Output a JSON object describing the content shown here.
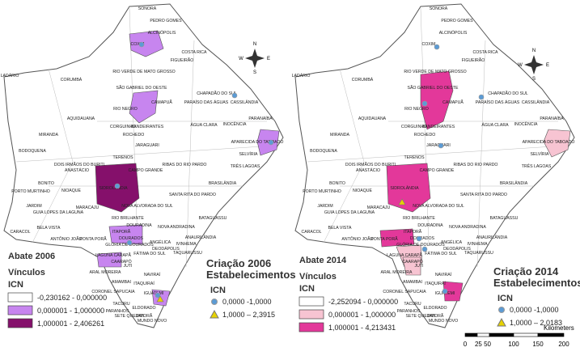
{
  "municipalities": [
    "SONORA",
    "PEDRO GOMES",
    "ALCINÓPOLIS",
    "COXIM",
    "COSTA RICA",
    "FIGUEIRÃO",
    "CORUMBÁ",
    "RIO VERDE DE MATO GROSSO",
    "LADÁRIO",
    "CHAPADÃO DO SUL",
    "SÃO GABRIEL DO OESTE",
    "CAMAPUÃ",
    "CASSILÂNDIA",
    "PARAÍSO DAS ÁGUAS",
    "RIO NEGRO",
    "PARANAÍBA",
    "INOCÊNCIA",
    "BANDEIRANTES",
    "CORGUINHO",
    "ÁGUA CLARA",
    "ROCHEDO",
    "APARECIDA DO TABOADO",
    "AQUIDAUANA",
    "JARAGUARI",
    "SELVÍRIA",
    "MIRANDA",
    "TRÊS LAGOAS",
    "TERENOS",
    "RIBAS DO RIO PARDO",
    "BODOQUENA",
    "DOIS IRMÃOS DO BURITI",
    "ANASTÁCIO",
    "CAMPO GRANDE",
    "PORTO MURTINHO",
    "BONITO",
    "SIDROLÂNDIA",
    "SANTA RITA DO PARDO",
    "BRASILÂNDIA",
    "NIOAQUE",
    "NOVA ALVORADA DO SUL",
    "JARDIM",
    "GUIA LOPES DA LAGUNA",
    "MARACAJU",
    "RIO BRILHANTE",
    "NOVA ANDRADINA",
    "BATAGUASSU",
    "CARACOL",
    "BELA VISTA",
    "ANTÔNIO JOÃO",
    "PONTA PORÃ",
    "DOURADINA",
    "ITAPORÃ",
    "DOURADOS",
    "ANAURILÂNDIA",
    "ANGÉLICA",
    "IVINHEMA",
    "DEODÁPOLIS",
    "GLÓRIA DE DOURADOS",
    "TAQUARUSSU",
    "LAGUNA CARAPÃ",
    "CAARAPÓ",
    "FÁTIMA DO SUL",
    "JUTI",
    "NAVIRAÍ",
    "ARAL MOREIRA",
    "AMAMBAI",
    "IGUATEMI",
    "CORONEL SAPUCAIA",
    "TACURU",
    "ITAQUIRAÍ",
    "PARANHOS",
    "SETE QUEDAS",
    "ELDORADO",
    "JAPORÃ",
    "MUNDO NOVO"
  ],
  "maps": [
    {
      "title": "Abate 2006",
      "legend_title": "Vínculos",
      "legend_subtitle": "ICN",
      "legend_items": [
        "-0,230162 - 0,000000",
        "0,000001 - 1,000000",
        "1,000001 - 2,406261"
      ],
      "points_title": [
        "Criação 2006",
        "Estabelecimentos"
      ],
      "points_subtitle": "ICN",
      "points_items": [
        "0,0000 -1,0000",
        "1,0000 – 2,3915"
      ]
    },
    {
      "title": "Abate 2014",
      "legend_title": "Vínculos",
      "legend_subtitle": "ICN",
      "legend_items": [
        "-2,252094 - 0,000000",
        "0,000001 - 1,000000",
        "1,000001 - 4,213431"
      ],
      "points_title": [
        "Criação 2014",
        "Estabelecimentos"
      ],
      "points_subtitle": "ICN",
      "points_items": [
        "0,0000 -1,0000",
        "1,0000 – 2,0183"
      ]
    }
  ],
  "compass": {
    "n": "N",
    "s": "S",
    "e": "E",
    "w": "W"
  },
  "scale": {
    "unit": "Kilometers",
    "ticks": [
      "0",
      "25 50",
      "100",
      "150",
      "200"
    ]
  }
}
